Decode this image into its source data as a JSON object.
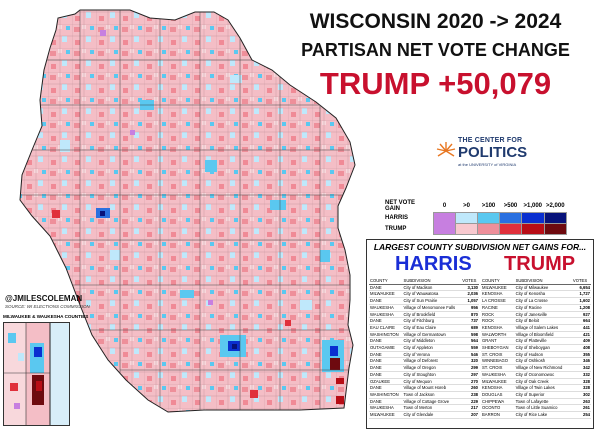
{
  "title_line1": "WISCONSIN 2020 -> 2024",
  "title_line2": "PARTISAN NET VOTE CHANGE",
  "headline": "TRUMP +50,079",
  "logo": {
    "line1": "THE CENTER FOR",
    "line2": "POLITICS",
    "line3": "at the UNIVERSITY of VIRGINIA"
  },
  "legend": {
    "title": "NET VOTE GAIN",
    "bins": [
      "0",
      ">0",
      ">100",
      ">500",
      ">1,000",
      ">2,000"
    ],
    "rows": [
      "HARRIS",
      "TRUMP"
    ],
    "colors": {
      "HARRIS": [
        "#c77fe0",
        "#bfe8fb",
        "#5ac8f0",
        "#2a70e0",
        "#0a2fd0",
        "#07127a"
      ],
      "TRUMP": [
        "#c77fe0",
        "#f8c9cf",
        "#ee8f9a",
        "#e0303b",
        "#b80d16",
        "#6e0a0f"
      ]
    }
  },
  "panel": {
    "title": "LARGEST COUNTY SUBDIVISION NET GAINS FOR...",
    "harris_label": "HARRIS",
    "trump_label": "TRUMP",
    "headers": [
      "COUNTY",
      "SUBDIVISION",
      "VOTES"
    ],
    "harris_rows": [
      [
        "DANE",
        "City of Madison",
        "3,130"
      ],
      [
        "MILWAUKEE",
        "City of Wauwatosa",
        "2,036"
      ],
      [
        "DANE",
        "City of Sun Prairie",
        "1,057"
      ],
      [
        "WAUKESHA",
        "Village of Menomonee Falls",
        "956"
      ],
      [
        "WAUKESHA",
        "City of Brookfield",
        "870"
      ],
      [
        "DANE",
        "City of Fitchburg",
        "737"
      ],
      [
        "EAU CLAIRE",
        "City of Eau Claire",
        "689"
      ],
      [
        "WASHINGTON",
        "Village of Germantown",
        "598"
      ],
      [
        "DANE",
        "City of Middleton",
        "564"
      ],
      [
        "OUTAGAMIE",
        "City of Appleton",
        "559"
      ],
      [
        "DANE",
        "City of Verona",
        "546"
      ],
      [
        "DANE",
        "Village of Deforest",
        "320"
      ],
      [
        "DANE",
        "Village of Oregon",
        "299"
      ],
      [
        "DANE",
        "City of Stoughton",
        "297"
      ],
      [
        "OZAUKEE",
        "City of Mequon",
        "270"
      ],
      [
        "DANE",
        "Village of Mount Horeb",
        "260"
      ],
      [
        "WASHINGTON",
        "Town of Jackson",
        "238"
      ],
      [
        "DANE",
        "Village of Cottage Grove",
        "229"
      ],
      [
        "WAUKESHA",
        "Town of Merton",
        "217"
      ],
      [
        "MILWAUKEE",
        "City of Glendale",
        "207"
      ]
    ],
    "trump_rows": [
      [
        "MILWAUKEE",
        "City of Milwaukee",
        "6,654"
      ],
      [
        "KENOSHA",
        "City of Kenosha",
        "1,727"
      ],
      [
        "LA CROSSE",
        "City of La Crosse",
        "1,602"
      ],
      [
        "RACINE",
        "City of Racine",
        "1,208"
      ],
      [
        "ROCK",
        "City of Janesville",
        "927"
      ],
      [
        "ROCK",
        "City of Beloit",
        "664"
      ],
      [
        "KENOSHA",
        "Village of Salem Lakes",
        "441"
      ],
      [
        "WALWORTH",
        "Village of Bloomfield",
        "421"
      ],
      [
        "GRANT",
        "City of Platteville",
        "409"
      ],
      [
        "SHEBOYGAN",
        "City of Sheboygan",
        "408"
      ],
      [
        "ST. CROIX",
        "City of Hudson",
        "355"
      ],
      [
        "WINNEBAGO",
        "City of Oshkosh",
        "346"
      ],
      [
        "ST. CROIX",
        "Village of New Richmond",
        "342"
      ],
      [
        "WAUKESHA",
        "City of Oconomowoc",
        "332"
      ],
      [
        "MILWAUKEE",
        "City of Oak Creek",
        "328"
      ],
      [
        "KENOSHA",
        "Village of Twin Lakes",
        "328"
      ],
      [
        "DOUGLAS",
        "City of Superior",
        "302"
      ],
      [
        "CHIPPEWA",
        "Town of Lafayette",
        "263"
      ],
      [
        "OCONTO",
        "Town of Little Suamico",
        "261"
      ],
      [
        "BARRON",
        "City of Rice Lake",
        "254"
      ]
    ]
  },
  "author": "@JMILESCOLEMAN",
  "source": "SOURCE: WI ELECTIONS COMMISSION",
  "inset_title": "MILWAUKEE & WAUKESHA COUNTIES"
}
